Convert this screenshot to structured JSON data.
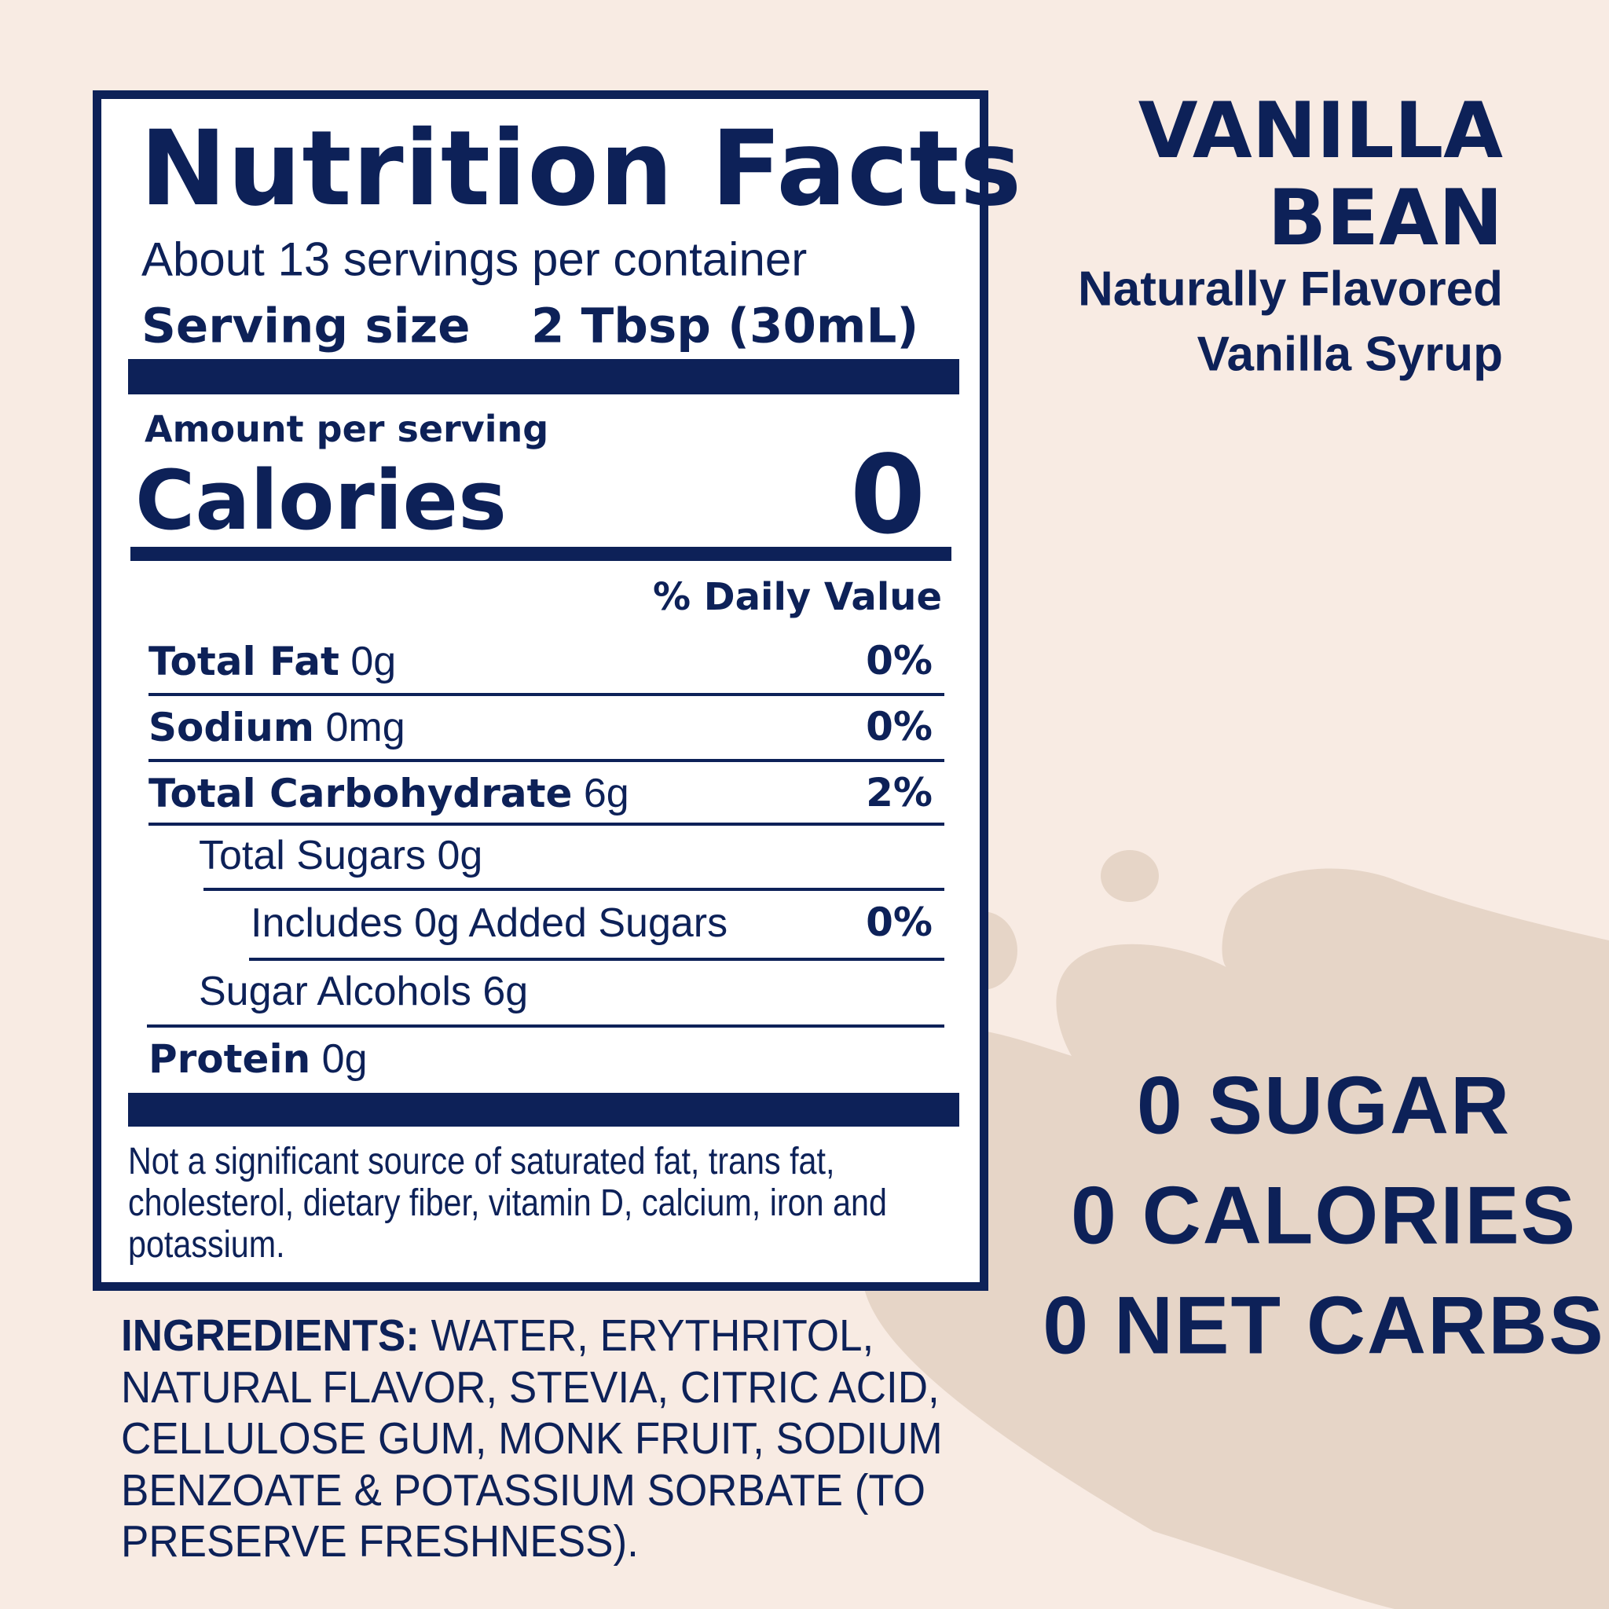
{
  "colors": {
    "background": "#f8ebe3",
    "blob": "#e6d5c7",
    "navy": "#0d2158",
    "panel": "#ffffff"
  },
  "label": {
    "title": "Nutrition Facts",
    "servings": "About 13 servings per container",
    "serving_size_label": "Serving size",
    "serving_size_value": "2 Tbsp (30mL)",
    "amount_per_serving": "Amount per serving",
    "calories_label": "Calories",
    "calories_value": "0",
    "daily_value_header": "% Daily Value",
    "rows": [
      {
        "name": "Total Fat",
        "amount": "0g",
        "dv": "0%"
      },
      {
        "name": "Sodium",
        "amount": "0mg",
        "dv": "0%"
      },
      {
        "name": "Total Carbohydrate",
        "amount": "6g",
        "dv": "2%"
      },
      {
        "text": "Total Sugars 0g"
      },
      {
        "text": "Includes 0g Added Sugars",
        "dv": "0%"
      },
      {
        "text": "Sugar Alcohols 6g"
      },
      {
        "name": "Protein",
        "amount": "0g"
      }
    ],
    "footnote": [
      "Not a significant source of saturated fat, trans fat,",
      "cholesterol, dietary fiber, vitamin D, calcium, iron and",
      "potassium."
    ]
  },
  "ingredients": {
    "label": "INGREDIENTS:",
    "lines": [
      " WATER, ERYTHRITOL,",
      "NATURAL FLAVOR, STEVIA, CITRIC ACID,",
      "CELLULOSE GUM, MONK FRUIT, SODIUM",
      "BENZOATE & POTASSIUM SORBATE (TO",
      "PRESERVE FRESHNESS)."
    ]
  },
  "product": {
    "name_line1": "VANILLA",
    "name_line2": "BEAN",
    "desc_line1": "Naturally Flavored",
    "desc_line2": "Vanilla Syrup"
  },
  "claims": [
    "0 SUGAR",
    "0 CALORIES",
    "0 NET CARBS"
  ]
}
